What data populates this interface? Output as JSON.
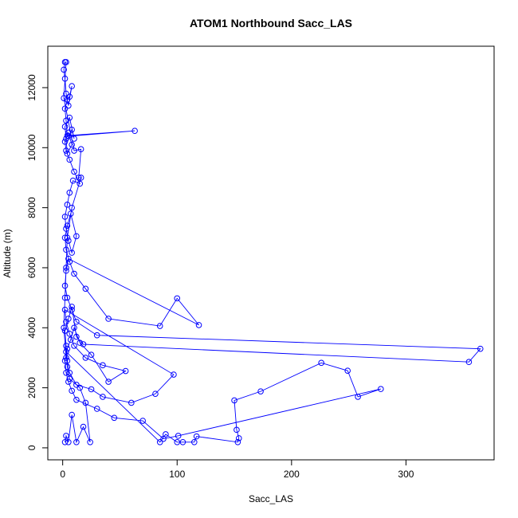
{
  "chart_data": {
    "type": "line",
    "markers": true,
    "title": "ATOM1 Northbound Sacc_LAS",
    "x_label": "Sacc_LAS",
    "y_label": "Altitude (m)",
    "color": "#0000ff",
    "xlim": [
      -13,
      377
    ],
    "ylim": [
      -400,
      13380
    ],
    "xticks": [
      0,
      100,
      200,
      300
    ],
    "yticks": [
      0,
      2000,
      4000,
      6000,
      8000,
      10000,
      12000
    ],
    "grid": false,
    "x": [
      2,
      3,
      5,
      8,
      12,
      18,
      24,
      20,
      15,
      6,
      4,
      3,
      85,
      90,
      100,
      105,
      115,
      117,
      153,
      154,
      152,
      150,
      173,
      226,
      249,
      258,
      278,
      101,
      88,
      70,
      45,
      30,
      12,
      8,
      5,
      3,
      2,
      4,
      7,
      10,
      15,
      25,
      40,
      55,
      35,
      20,
      10,
      6,
      3,
      2,
      97,
      81,
      60,
      35,
      25,
      12,
      6,
      4,
      3,
      2,
      5,
      8,
      12,
      18,
      355,
      365,
      30,
      12,
      8,
      4,
      2,
      3,
      5,
      119,
      100,
      85,
      40,
      20,
      10,
      6,
      3,
      2,
      4,
      7,
      12,
      8,
      5,
      3,
      2,
      4,
      6,
      9,
      15,
      10,
      6,
      3,
      2,
      5,
      8,
      4,
      3,
      2,
      6,
      10,
      8,
      5,
      63,
      4,
      3,
      2,
      4,
      6,
      8,
      5,
      3,
      2,
      1,
      2,
      3,
      1,
      10,
      16,
      14,
      16,
      8,
      4,
      3,
      2,
      1,
      3
    ],
    "y": [
      190,
      400,
      190,
      1100,
      190,
      700,
      190,
      1500,
      2000,
      2300,
      2700,
      3200,
      190,
      450,
      190,
      190,
      190,
      380,
      190,
      320,
      600,
      1580,
      1880,
      2830,
      2570,
      1700,
      1960,
      400,
      300,
      900,
      1000,
      1300,
      1600,
      1900,
      2200,
      2500,
      2900,
      3300,
      3600,
      4000,
      3500,
      3100,
      2200,
      2560,
      2750,
      3000,
      3400,
      3800,
      4200,
      4600,
      2440,
      1800,
      1500,
      1700,
      1950,
      2100,
      2500,
      2900,
      3400,
      3900,
      4300,
      4700,
      3700,
      3450,
      2860,
      3300,
      3750,
      4200,
      4600,
      5000,
      5400,
      5900,
      6300,
      4090,
      4980,
      4060,
      4300,
      5300,
      5800,
      6200,
      6600,
      7000,
      7400,
      7800,
      7050,
      6500,
      6900,
      7300,
      7700,
      8100,
      8500,
      8900,
      8800,
      9200,
      9600,
      9900,
      10200,
      10500,
      10100,
      9800,
      10300,
      10700,
      11000,
      10300,
      10600,
      10380,
      10560,
      10400,
      10900,
      11300,
      11600,
      11700,
      12050,
      11400,
      11800,
      12300,
      12600,
      12850,
      12850,
      11650,
      9900,
      9950,
      9000,
      9000,
      8000,
      7000,
      6000,
      5000,
      4000,
      3000
    ]
  }
}
